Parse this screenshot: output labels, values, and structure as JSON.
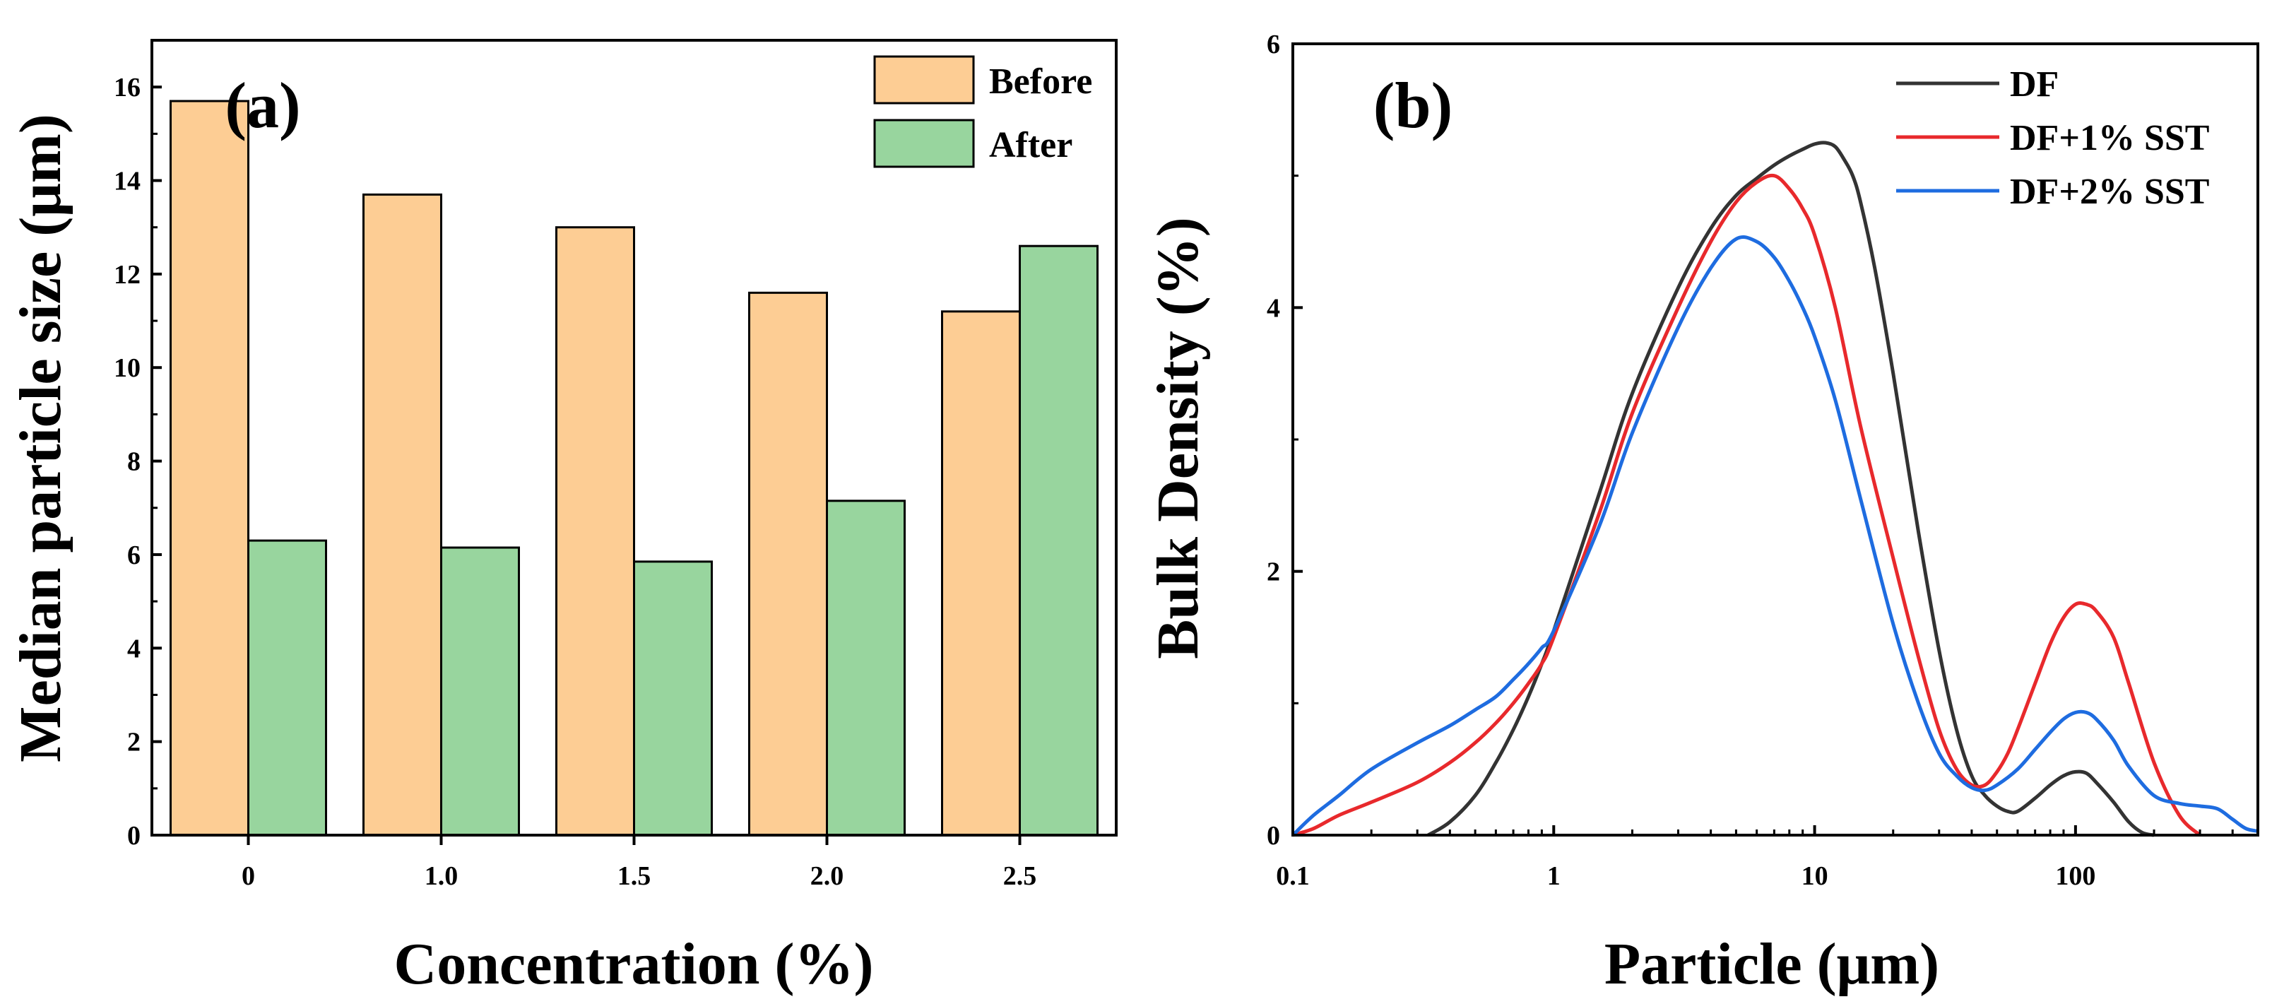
{
  "chart_data": [
    {
      "type": "bar",
      "panel_label": "(a)",
      "categories": [
        "0",
        "1.0",
        "1.5",
        "2.0",
        "2.5"
      ],
      "series": [
        {
          "name": "Before",
          "color": "#FDCD94",
          "values": [
            15.7,
            13.7,
            13.0,
            11.6,
            11.2
          ]
        },
        {
          "name": "After",
          "color": "#98D59E",
          "values": [
            6.3,
            6.15,
            5.85,
            7.15,
            12.6
          ]
        }
      ],
      "xlabel": "Concentration (%)",
      "ylabel": "Median particle size (μm)",
      "ylim": [
        0,
        17
      ],
      "yticks": [
        0,
        2,
        4,
        6,
        8,
        10,
        12,
        14,
        16
      ],
      "legend_position": "top-right"
    },
    {
      "type": "line",
      "panel_label": "(b)",
      "xscale": "log",
      "xlim": [
        0.1,
        500
      ],
      "ylim": [
        0,
        6
      ],
      "xticks": [
        0.1,
        1,
        10,
        100
      ],
      "xtick_labels": [
        "0.1",
        "1",
        "10",
        "100"
      ],
      "yticks": [
        0,
        2,
        4,
        6
      ],
      "xlabel": "Particle (μm)",
      "ylabel": "Bulk Density (%)",
      "legend_position": "top-right",
      "series": [
        {
          "name": "DF",
          "color": "#333333",
          "x": [
            0.33,
            0.4,
            0.5,
            0.6,
            0.7,
            0.8,
            0.9,
            1.0,
            1.5,
            2,
            3,
            4,
            5,
            6,
            7,
            8,
            9,
            10,
            11,
            12,
            13,
            14,
            15,
            17,
            20,
            25,
            30,
            35,
            40,
            45,
            50,
            55,
            60,
            70,
            80,
            90,
            100,
            110,
            120,
            140,
            160,
            180,
            200
          ],
          "y": [
            0.0,
            0.1,
            0.3,
            0.55,
            0.8,
            1.05,
            1.3,
            1.55,
            2.6,
            3.35,
            4.15,
            4.6,
            4.85,
            4.98,
            5.08,
            5.15,
            5.2,
            5.24,
            5.25,
            5.22,
            5.12,
            5.0,
            4.8,
            4.3,
            3.5,
            2.3,
            1.4,
            0.8,
            0.45,
            0.3,
            0.22,
            0.18,
            0.18,
            0.28,
            0.38,
            0.45,
            0.48,
            0.47,
            0.4,
            0.25,
            0.1,
            0.02,
            0.0
          ]
        },
        {
          "name": "DF+1% SST",
          "color": "#E8292C",
          "x": [
            0.1,
            0.12,
            0.15,
            0.2,
            0.3,
            0.4,
            0.5,
            0.6,
            0.7,
            0.8,
            0.9,
            1.0,
            1.5,
            2,
            3,
            4,
            5,
            6,
            7,
            8,
            9,
            10,
            12,
            15,
            20,
            25,
            30,
            35,
            40,
            45,
            50,
            55,
            60,
            70,
            80,
            90,
            100,
            110,
            120,
            140,
            160,
            200,
            250,
            300
          ],
          "y": [
            0.0,
            0.05,
            0.15,
            0.25,
            0.4,
            0.55,
            0.7,
            0.85,
            1.0,
            1.15,
            1.3,
            1.5,
            2.45,
            3.2,
            4.0,
            4.5,
            4.8,
            4.95,
            5.0,
            4.9,
            4.75,
            4.55,
            4.0,
            3.1,
            2.1,
            1.35,
            0.8,
            0.5,
            0.38,
            0.38,
            0.48,
            0.62,
            0.8,
            1.15,
            1.45,
            1.65,
            1.75,
            1.75,
            1.7,
            1.5,
            1.15,
            0.55,
            0.15,
            0.0
          ]
        },
        {
          "name": "DF+2% SST",
          "color": "#1E6CE0",
          "x": [
            0.1,
            0.12,
            0.15,
            0.2,
            0.3,
            0.4,
            0.5,
            0.6,
            0.7,
            0.8,
            0.9,
            1.0,
            1.5,
            2,
            3,
            4,
            5,
            6,
            7,
            8,
            9,
            10,
            12,
            15,
            20,
            25,
            30,
            35,
            40,
            45,
            50,
            60,
            70,
            80,
            90,
            100,
            110,
            120,
            140,
            160,
            200,
            250,
            300,
            350,
            400,
            450,
            500
          ],
          "y": [
            0.0,
            0.15,
            0.3,
            0.5,
            0.7,
            0.83,
            0.95,
            1.05,
            1.18,
            1.3,
            1.42,
            1.55,
            2.35,
            3.05,
            3.85,
            4.3,
            4.52,
            4.5,
            4.38,
            4.2,
            4.0,
            3.78,
            3.3,
            2.55,
            1.6,
            1.0,
            0.62,
            0.45,
            0.36,
            0.34,
            0.38,
            0.5,
            0.65,
            0.78,
            0.88,
            0.93,
            0.93,
            0.88,
            0.72,
            0.52,
            0.3,
            0.24,
            0.22,
            0.2,
            0.12,
            0.05,
            0.03
          ]
        }
      ]
    }
  ]
}
